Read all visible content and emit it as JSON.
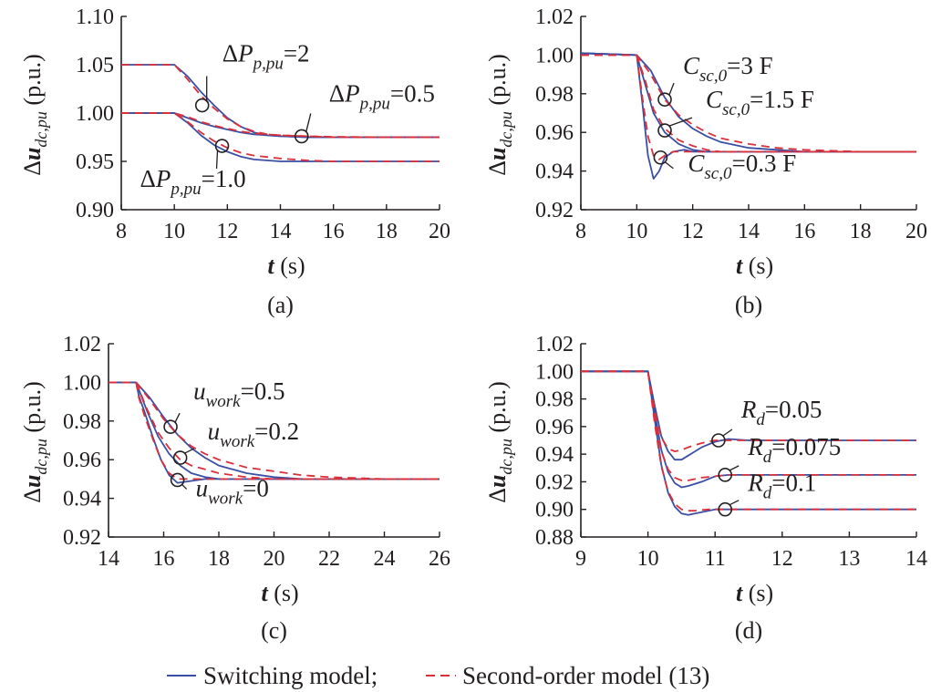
{
  "legend": {
    "items": [
      {
        "label": "Switching model;",
        "color": "#3a4fa3",
        "dash": "solid"
      },
      {
        "label": "Second-order model (13)",
        "color": "#d9303b",
        "dash": "dashed"
      }
    ]
  },
  "chart_data": [
    {
      "type": "line",
      "panel_label": "(a)",
      "ylabel": "Δu_{dc,pu} (p.u.)",
      "xlabel": "t (s)",
      "xlim": [
        8,
        20
      ],
      "ylim": [
        0.9,
        1.1
      ],
      "xticks": [
        8,
        10,
        12,
        14,
        16,
        18,
        20
      ],
      "yticks": [
        "0.90",
        "0.95",
        "1.00",
        "1.05",
        "1.10"
      ],
      "grid": false,
      "series": [
        {
          "label": "ΔP_{p,pu}=2",
          "model": "switching",
          "x": [
            8,
            10,
            10.5,
            11,
            11.5,
            12,
            12.5,
            13,
            13.5,
            14,
            15,
            16,
            18,
            20
          ],
          "y": [
            1.05,
            1.05,
            1.038,
            1.022,
            1.008,
            0.995,
            0.986,
            0.98,
            0.977,
            0.976,
            0.975,
            0.975,
            0.975,
            0.975
          ]
        },
        {
          "label": "ΔP_{p,pu}=2",
          "model": "second-order",
          "x": [
            8,
            10,
            10.5,
            11,
            11.5,
            12,
            12.5,
            13,
            13.5,
            14,
            15,
            16,
            18,
            20
          ],
          "y": [
            1.05,
            1.05,
            1.035,
            1.018,
            1.005,
            0.994,
            0.986,
            0.981,
            0.978,
            0.977,
            0.976,
            0.975,
            0.975,
            0.975
          ]
        },
        {
          "label": "ΔP_{p,pu}=0.5",
          "model": "switching",
          "x": [
            8,
            10,
            10.5,
            11,
            11.5,
            12,
            12.5,
            13,
            14,
            15,
            16,
            18,
            20
          ],
          "y": [
            1.0,
            1.0,
            0.995,
            0.99,
            0.986,
            0.983,
            0.98,
            0.978,
            0.976,
            0.975,
            0.975,
            0.975,
            0.975
          ]
        },
        {
          "label": "ΔP_{p,pu}=0.5",
          "model": "second-order",
          "x": [
            8,
            10,
            10.5,
            11,
            11.5,
            12,
            12.5,
            13,
            14,
            15,
            16,
            18,
            20
          ],
          "y": [
            1.0,
            1.0,
            0.996,
            0.991,
            0.987,
            0.984,
            0.981,
            0.979,
            0.977,
            0.976,
            0.9755,
            0.975,
            0.975
          ]
        },
        {
          "label": "ΔP_{p,pu}=1.0",
          "model": "switching",
          "x": [
            8,
            10,
            10.5,
            11,
            11.5,
            12,
            12.5,
            13,
            14,
            15,
            16,
            18,
            20
          ],
          "y": [
            1.0,
            1.0,
            0.99,
            0.977,
            0.967,
            0.96,
            0.955,
            0.952,
            0.95,
            0.95,
            0.95,
            0.95,
            0.95
          ]
        },
        {
          "label": "ΔP_{p,pu}=1.0",
          "model": "second-order",
          "x": [
            8,
            10,
            10.5,
            11,
            11.5,
            12,
            12.5,
            13,
            14,
            15,
            16,
            18,
            20
          ],
          "y": [
            1.0,
            1.0,
            0.991,
            0.98,
            0.971,
            0.964,
            0.959,
            0.956,
            0.953,
            0.951,
            0.95,
            0.95,
            0.95
          ]
        }
      ],
      "annotations": [
        {
          "main": "ΔP",
          "sub": "p,pu",
          "value": "=2",
          "x": 11.05,
          "y": 1.008
        },
        {
          "main": "ΔP",
          "sub": "p,pu",
          "value": "=0.5",
          "x": 14.8,
          "y": 0.976
        },
        {
          "main": "ΔP",
          "sub": "p,pu",
          "value": "=1.0",
          "x": 11.8,
          "y": 0.966
        }
      ]
    },
    {
      "type": "line",
      "panel_label": "(b)",
      "ylabel": "Δu_{dc,pu} (p.u.)",
      "xlabel": "t (s)",
      "xlim": [
        8,
        20
      ],
      "ylim": [
        0.92,
        1.02
      ],
      "xticks": [
        8,
        10,
        12,
        14,
        16,
        18,
        20
      ],
      "yticks": [
        "0.92",
        "0.94",
        "0.96",
        "0.98",
        "1.00",
        "1.02"
      ],
      "grid": false,
      "series": [
        {
          "label": "C_{sc,0}=3 F",
          "model": "switching",
          "x": [
            8,
            10,
            10.5,
            11,
            11.5,
            12,
            12.5,
            13,
            14,
            15,
            16,
            18,
            20
          ],
          "y": [
            1.001,
            1.0,
            0.992,
            0.978,
            0.968,
            0.962,
            0.958,
            0.955,
            0.952,
            0.951,
            0.95,
            0.95,
            0.95
          ]
        },
        {
          "label": "C_{sc,0}=3 F",
          "model": "second-order",
          "x": [
            8,
            10,
            10.5,
            11,
            11.5,
            12,
            12.5,
            13,
            14,
            15,
            16,
            18,
            20
          ],
          "y": [
            1.0,
            1.0,
            0.99,
            0.977,
            0.969,
            0.964,
            0.96,
            0.957,
            0.954,
            0.952,
            0.951,
            0.95,
            0.95
          ]
        },
        {
          "label": "C_{sc,0}=1.5 F",
          "model": "switching",
          "x": [
            8,
            10,
            10.3,
            10.6,
            11,
            11.5,
            12,
            12.5,
            13,
            14,
            16,
            20
          ],
          "y": [
            1.001,
            1.0,
            0.985,
            0.97,
            0.96,
            0.954,
            0.951,
            0.95,
            0.95,
            0.95,
            0.95,
            0.95
          ]
        },
        {
          "label": "C_{sc,0}=1.5 F",
          "model": "second-order",
          "x": [
            8,
            10,
            10.3,
            10.6,
            11,
            11.5,
            12,
            12.5,
            13,
            14,
            16,
            20
          ],
          "y": [
            1.0,
            1.0,
            0.987,
            0.972,
            0.962,
            0.956,
            0.953,
            0.951,
            0.95,
            0.95,
            0.95,
            0.95
          ]
        },
        {
          "label": "C_{sc,0}=0.3 F",
          "model": "switching",
          "x": [
            8,
            10,
            10.2,
            10.4,
            10.6,
            10.8,
            11,
            11.3,
            11.7,
            12,
            13,
            14,
            16,
            20
          ],
          "y": [
            1.001,
            1.0,
            0.975,
            0.948,
            0.936,
            0.94,
            0.947,
            0.95,
            0.951,
            0.95,
            0.95,
            0.95,
            0.95,
            0.95
          ]
        },
        {
          "label": "C_{sc,0}=0.3 F",
          "model": "second-order",
          "x": [
            8,
            10,
            10.2,
            10.4,
            10.6,
            10.8,
            11,
            11.3,
            11.7,
            12,
            13,
            14,
            16,
            20
          ],
          "y": [
            1.0,
            1.0,
            0.978,
            0.958,
            0.948,
            0.946,
            0.948,
            0.95,
            0.95,
            0.95,
            0.95,
            0.95,
            0.95,
            0.95
          ]
        }
      ],
      "annotations": [
        {
          "main": "C",
          "sub": "sc,0",
          "value": "=3 F",
          "x": 11.0,
          "y": 0.977
        },
        {
          "main": "C",
          "sub": "sc,0",
          "value": "=1.5 F",
          "x": 11.0,
          "y": 0.961
        },
        {
          "main": "C",
          "sub": "sc,0",
          "value": "=0.3 F",
          "x": 10.85,
          "y": 0.947
        }
      ]
    },
    {
      "type": "line",
      "panel_label": "(c)",
      "ylabel": "Δu_{dc,pu} (p.u.)",
      "xlabel": "t (s)",
      "xlim": [
        14,
        26
      ],
      "ylim": [
        0.92,
        1.02
      ],
      "xticks": [
        14,
        16,
        18,
        20,
        22,
        24,
        26
      ],
      "yticks": [
        "0.92",
        "0.94",
        "0.96",
        "0.98",
        "1.00",
        "1.02"
      ],
      "grid": false,
      "series": [
        {
          "label": "u_{work}=0.5",
          "model": "switching",
          "x": [
            14,
            15,
            15.5,
            16,
            16.5,
            17,
            17.5,
            18,
            19,
            20,
            21,
            22,
            24,
            26
          ],
          "y": [
            1.0,
            1.0,
            0.992,
            0.982,
            0.973,
            0.966,
            0.961,
            0.957,
            0.953,
            0.951,
            0.95,
            0.95,
            0.95,
            0.95
          ]
        },
        {
          "label": "u_{work}=0.5",
          "model": "second-order",
          "x": [
            14,
            15,
            15.5,
            16,
            16.5,
            17,
            17.5,
            18,
            19,
            20,
            21,
            22,
            24,
            26
          ],
          "y": [
            1.0,
            1.0,
            0.991,
            0.981,
            0.973,
            0.967,
            0.963,
            0.96,
            0.956,
            0.954,
            0.952,
            0.951,
            0.95,
            0.95
          ]
        },
        {
          "label": "u_{work}=0.2",
          "model": "switching",
          "x": [
            14,
            15,
            15.4,
            15.8,
            16.2,
            16.6,
            17,
            17.5,
            18,
            19,
            20,
            22,
            26
          ],
          "y": [
            1.0,
            1.0,
            0.985,
            0.972,
            0.963,
            0.957,
            0.953,
            0.951,
            0.95,
            0.95,
            0.95,
            0.95,
            0.95
          ]
        },
        {
          "label": "u_{work}=0.2",
          "model": "second-order",
          "x": [
            14,
            15,
            15.4,
            15.8,
            16.2,
            16.6,
            17,
            17.5,
            18,
            19,
            20,
            22,
            26
          ],
          "y": [
            1.0,
            1.0,
            0.986,
            0.974,
            0.966,
            0.96,
            0.957,
            0.955,
            0.953,
            0.951,
            0.95,
            0.95,
            0.95
          ]
        },
        {
          "label": "u_{work}=0",
          "model": "switching",
          "x": [
            14,
            15,
            15.1,
            15.3,
            15.6,
            15.9,
            16.2,
            16.5,
            17,
            17.5,
            18,
            20,
            22,
            26
          ],
          "y": [
            1.0,
            1.0,
            0.993,
            0.985,
            0.972,
            0.96,
            0.952,
            0.948,
            0.949,
            0.95,
            0.95,
            0.95,
            0.95,
            0.95
          ]
        },
        {
          "label": "u_{work}=0",
          "model": "second-order",
          "x": [
            14,
            15,
            15.1,
            15.3,
            15.6,
            15.9,
            16.2,
            16.5,
            17,
            17.5,
            18,
            20,
            22,
            26
          ],
          "y": [
            1.0,
            1.0,
            0.992,
            0.983,
            0.971,
            0.96,
            0.953,
            0.95,
            0.95,
            0.95,
            0.95,
            0.95,
            0.95,
            0.95
          ]
        }
      ],
      "annotations": [
        {
          "main": "u",
          "sub": "work",
          "value": "=0.5",
          "x": 16.25,
          "y": 0.977
        },
        {
          "main": "u",
          "sub": "work",
          "value": "=0.2",
          "x": 16.6,
          "y": 0.961
        },
        {
          "main": "u",
          "sub": "work",
          "value": "=0",
          "x": 16.5,
          "y": 0.9495
        }
      ]
    },
    {
      "type": "line",
      "panel_label": "(d)",
      "ylabel": "Δu_{dc,pu} (p.u.)",
      "xlabel": "t (s)",
      "xlim": [
        9,
        14
      ],
      "ylim": [
        0.88,
        1.02
      ],
      "xticks": [
        9,
        10,
        11,
        12,
        13,
        14
      ],
      "yticks": [
        "0.88",
        "0.90",
        "0.92",
        "0.94",
        "0.96",
        "0.98",
        "1.00",
        "1.02"
      ],
      "grid": false,
      "series": [
        {
          "label": "R_{d}=0.05",
          "model": "switching",
          "x": [
            9,
            10,
            10.1,
            10.2,
            10.3,
            10.4,
            10.5,
            10.6,
            10.8,
            11,
            11.2,
            11.5,
            12,
            13,
            14
          ],
          "y": [
            1.0,
            1.0,
            0.975,
            0.953,
            0.942,
            0.936,
            0.936,
            0.939,
            0.945,
            0.949,
            0.951,
            0.95,
            0.95,
            0.95,
            0.95
          ]
        },
        {
          "label": "R_{d}=0.05",
          "model": "second-order",
          "x": [
            9,
            10,
            10.1,
            10.2,
            10.3,
            10.4,
            10.5,
            10.6,
            10.8,
            11,
            11.2,
            11.5,
            12,
            13,
            14
          ],
          "y": [
            1.0,
            1.0,
            0.972,
            0.952,
            0.944,
            0.942,
            0.943,
            0.945,
            0.948,
            0.95,
            0.95,
            0.95,
            0.95,
            0.95,
            0.95
          ]
        },
        {
          "label": "R_{d}=0.075",
          "model": "switching",
          "x": [
            9,
            10,
            10.1,
            10.2,
            10.3,
            10.4,
            10.5,
            10.6,
            10.8,
            11,
            11.2,
            11.5,
            12,
            13,
            14
          ],
          "y": [
            1.0,
            1.0,
            0.97,
            0.943,
            0.927,
            0.919,
            0.916,
            0.917,
            0.92,
            0.924,
            0.925,
            0.925,
            0.925,
            0.925,
            0.925
          ]
        },
        {
          "label": "R_{d}=0.075",
          "model": "second-order",
          "x": [
            9,
            10,
            10.1,
            10.2,
            10.3,
            10.4,
            10.5,
            10.6,
            10.8,
            11,
            11.2,
            11.5,
            12,
            13,
            14
          ],
          "y": [
            1.0,
            1.0,
            0.967,
            0.942,
            0.929,
            0.923,
            0.921,
            0.921,
            0.923,
            0.924,
            0.925,
            0.925,
            0.925,
            0.925,
            0.925
          ]
        },
        {
          "label": "R_{d}=0.1",
          "model": "switching",
          "x": [
            9,
            10,
            10.1,
            10.2,
            10.3,
            10.4,
            10.5,
            10.6,
            10.7,
            10.9,
            11,
            11.3,
            12,
            13,
            14
          ],
          "y": [
            1.0,
            1.0,
            0.965,
            0.932,
            0.912,
            0.902,
            0.897,
            0.896,
            0.897,
            0.899,
            0.9,
            0.9,
            0.9,
            0.9,
            0.9
          ]
        },
        {
          "label": "R_{d}=0.1",
          "model": "second-order",
          "x": [
            9,
            10,
            10.1,
            10.2,
            10.3,
            10.4,
            10.5,
            10.6,
            10.7,
            10.9,
            11,
            11.3,
            12,
            13,
            14
          ],
          "y": [
            1.0,
            1.0,
            0.962,
            0.931,
            0.913,
            0.904,
            0.9,
            0.899,
            0.899,
            0.9,
            0.9,
            0.9,
            0.9,
            0.9,
            0.9
          ]
        }
      ],
      "annotations": [
        {
          "main": "R",
          "sub": "d",
          "value": "=0.05",
          "x": 11.05,
          "y": 0.95
        },
        {
          "main": "R",
          "sub": "d",
          "value": "=0.075",
          "x": 11.15,
          "y": 0.925
        },
        {
          "main": "R",
          "sub": "d",
          "value": "=0.1",
          "x": 11.15,
          "y": 0.9
        }
      ]
    }
  ]
}
